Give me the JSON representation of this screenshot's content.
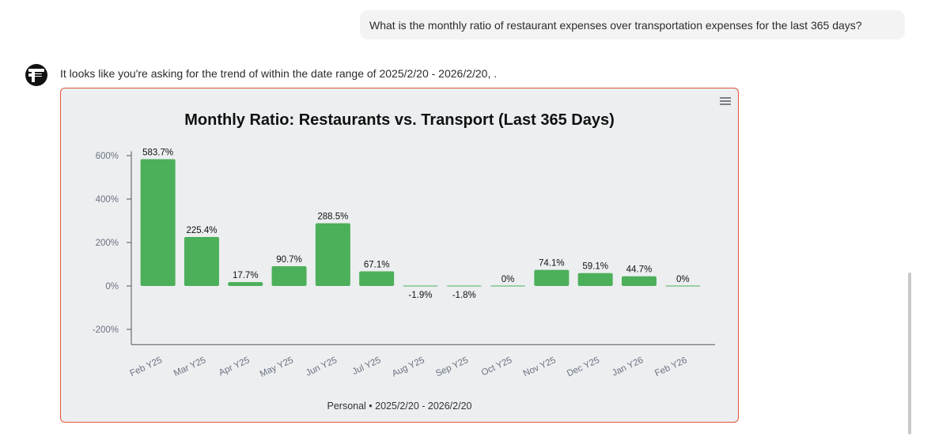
{
  "conversation": {
    "user_message": "What is the monthly ratio of restaurant expenses over transportation expenses for the last 365 days?",
    "assistant_message": "It looks like you're asking for the trend of within the date range of 2025/2/20 - 2026/2/20, ."
  },
  "chart_data": {
    "type": "bar",
    "title": "Monthly Ratio: Restaurants vs. Transport (Last 365 Days)",
    "categories": [
      "Feb Y25",
      "Mar Y25",
      "Apr Y25",
      "May Y25",
      "Jun Y25",
      "Jul Y25",
      "Aug Y25",
      "Sep Y25",
      "Oct Y25",
      "Nov Y25",
      "Dec Y25",
      "Jan Y26",
      "Feb Y26"
    ],
    "values": [
      583.7,
      225.4,
      17.7,
      90.7,
      288.5,
      67.1,
      -1.9,
      -1.8,
      0,
      74.1,
      59.1,
      44.7,
      0
    ],
    "data_labels": [
      "583.7%",
      "225.4%",
      "17.7%",
      "90.7%",
      "288.5%",
      "67.1%",
      "-1.9%",
      "-1.8%",
      "0%",
      "74.1%",
      "59.1%",
      "44.7%",
      "0%"
    ],
    "y_ticks": [
      600,
      400,
      200,
      0,
      -200
    ],
    "y_tick_labels": [
      "600%",
      "400%",
      "200%",
      "0%",
      "-200%"
    ],
    "ylim": [
      -270,
      620
    ],
    "xlabel": "",
    "ylabel": "",
    "grid": false,
    "bar_color": "#4caf5a",
    "caption": "Personal • 2025/2/20 - 2026/2/20"
  }
}
